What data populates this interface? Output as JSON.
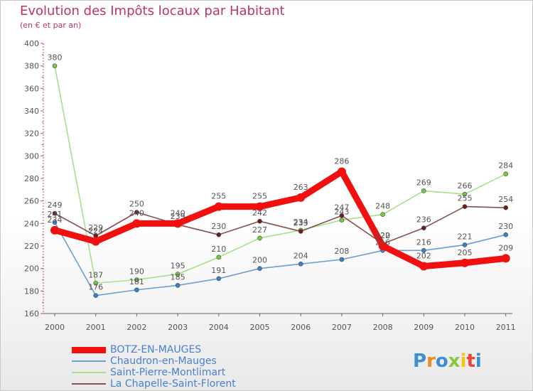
{
  "title": "Evolution des Impôts locaux par Habitant",
  "subtitle": "(en € et par an)",
  "logo": "Proxiti",
  "colors": {
    "title": "#c0306a",
    "legend_text": "#4a7fd0",
    "axis_text": "#555555"
  },
  "chart_data": {
    "type": "line",
    "title": "Evolution des Impôts locaux par Habitant",
    "subtitle": "(en € et par an)",
    "xlabel": "",
    "ylabel": "",
    "categories": [
      "2000",
      "2001",
      "2002",
      "2003",
      "2004",
      "2005",
      "2006",
      "2007",
      "2008",
      "2009",
      "2010",
      "2011"
    ],
    "ylim": [
      160,
      400
    ],
    "yticks": [
      160,
      180,
      200,
      220,
      240,
      260,
      280,
      300,
      320,
      340,
      360,
      380,
      400
    ],
    "grid": false,
    "legend_position": "bottom-left",
    "series": [
      {
        "name": "BOTZ-EN-MAUGES",
        "color": "#f01010",
        "marker": "#f01010",
        "width": "thick",
        "values": [
          234,
          224,
          240,
          240,
          255,
          255,
          263,
          286,
          220,
          202,
          205,
          209
        ],
        "labels": [
          "234",
          "224",
          "240",
          "240",
          "255",
          "255",
          "263",
          "286",
          "220",
          "202",
          "205",
          "209"
        ]
      },
      {
        "name": "Chaudron-en-Mauges",
        "color": "#6a9fd4",
        "marker": "#3a82c8",
        "width": "thin",
        "values": [
          241,
          176,
          181,
          185,
          191,
          200,
          204,
          208,
          216,
          216,
          221,
          230
        ],
        "labels": [
          "241",
          "176",
          "181",
          "185",
          "191",
          "200",
          "204",
          "208",
          "216",
          "216",
          "221",
          "230"
        ]
      },
      {
        "name": "Saint-Pierre-Montlimart",
        "color": "#a8e08a",
        "marker": "#74cc3c",
        "width": "thin",
        "values": [
          380,
          187,
          190,
          195,
          210,
          227,
          234,
          243,
          248,
          269,
          266,
          284
        ],
        "labels": [
          "380",
          "187",
          "190",
          "195",
          "210",
          "227",
          "234",
          "243",
          "248",
          "269",
          "266",
          "284"
        ]
      },
      {
        "name": "La Chapelle-Saint-Florent",
        "color": "#8a4f4f",
        "marker": "#6b1c1c",
        "width": "thin",
        "values": [
          249,
          229,
          250,
          239,
          230,
          242,
          233,
          247,
          222,
          236,
          255,
          254
        ],
        "labels": [
          "249",
          "229",
          "250",
          "239",
          "230",
          "242",
          "233",
          "247",
          "222",
          "236",
          "255",
          "254"
        ]
      }
    ]
  }
}
